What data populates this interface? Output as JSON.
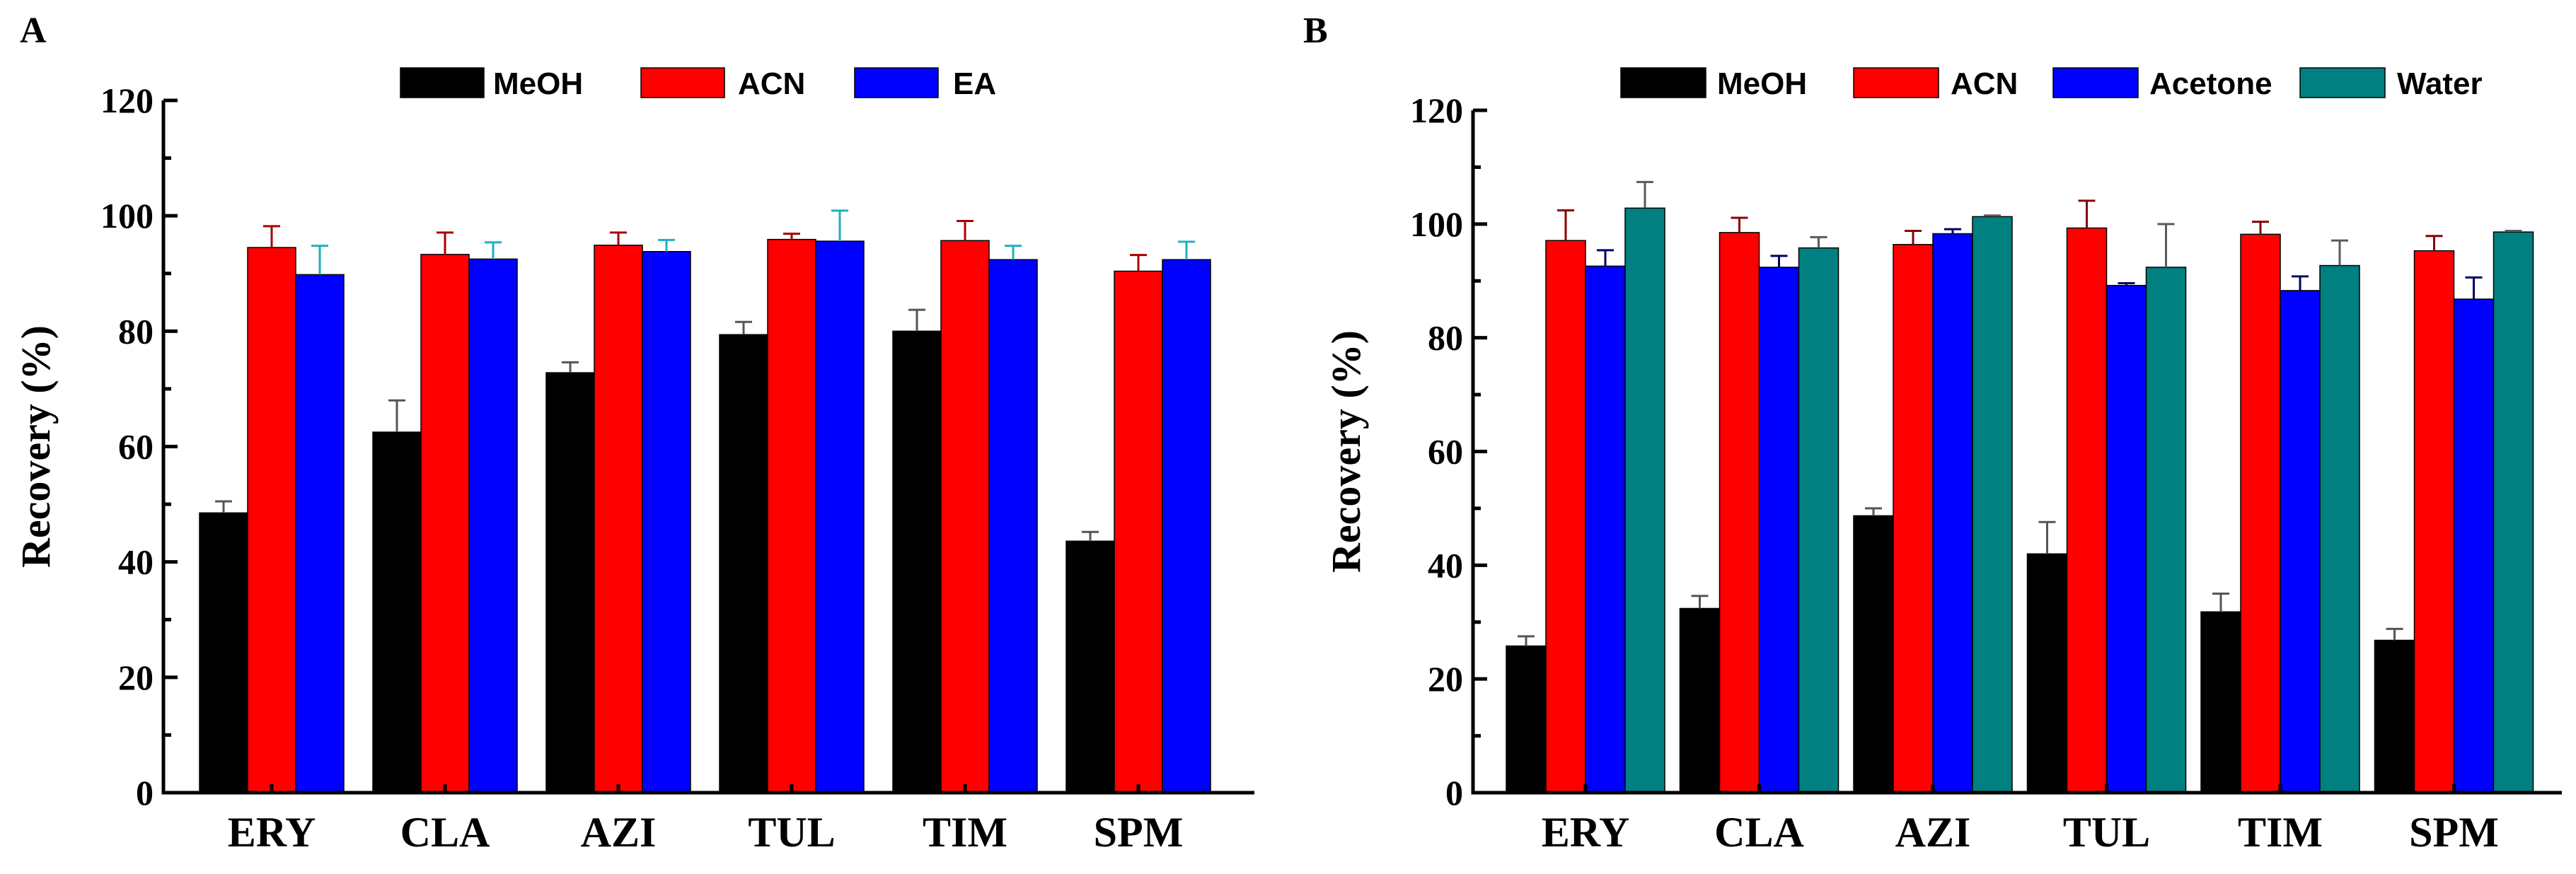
{
  "chart_data": [
    {
      "panel_label": "A",
      "type": "bar",
      "title": "",
      "xlabel": "",
      "ylabel": "Recovery (%)",
      "ylim": [
        0,
        120
      ],
      "yticks": [
        "0",
        "20",
        "40",
        "60",
        "80",
        "100",
        "120"
      ],
      "categories": [
        "ERY",
        "CLA",
        "AZI",
        "TUL",
        "TIM",
        "SPM"
      ],
      "legend_position": "top-center",
      "series": [
        {
          "name": "MeOH",
          "color": "#000000",
          "error_color": "#555555",
          "values": [
            48.5,
            62.5,
            72.8,
            79.4,
            80.0,
            43.6
          ],
          "errors": [
            2.0,
            5.5,
            1.8,
            2.2,
            3.7,
            1.6
          ]
        },
        {
          "name": "ACN",
          "color": "#ff0000",
          "error_color": "#aa0000",
          "values": [
            94.5,
            93.3,
            94.9,
            95.9,
            95.7,
            90.4
          ],
          "errors": [
            3.7,
            3.8,
            2.2,
            1.0,
            3.4,
            2.8
          ]
        },
        {
          "name": "EA",
          "color": "#0000ff",
          "error_color": "#20b0c0",
          "values": [
            89.8,
            92.5,
            93.8,
            95.6,
            92.4,
            92.4
          ],
          "errors": [
            5.0,
            2.9,
            2.0,
            5.3,
            2.4,
            3.1
          ]
        }
      ]
    },
    {
      "panel_label": "B",
      "type": "bar",
      "title": "",
      "xlabel": "",
      "ylabel": "Recovery (%)",
      "ylim": [
        0,
        120
      ],
      "yticks": [
        "0",
        "20",
        "40",
        "60",
        "80",
        "100",
        "120"
      ],
      "categories": [
        "ERY",
        "CLA",
        "AZI",
        "TUL",
        "TIM",
        "SPM"
      ],
      "legend_position": "top-center",
      "series": [
        {
          "name": "MeOH",
          "color": "#000000",
          "error_color": "#555555",
          "values": [
            25.8,
            32.4,
            48.7,
            42.0,
            31.8,
            26.8
          ],
          "errors": [
            1.7,
            2.2,
            1.3,
            5.6,
            3.2,
            2.0
          ]
        },
        {
          "name": "ACN",
          "color": "#ff0000",
          "error_color": "#8a0000",
          "values": [
            97.1,
            98.5,
            96.4,
            99.3,
            98.2,
            95.3
          ],
          "errors": [
            5.3,
            2.6,
            2.4,
            4.8,
            2.2,
            2.6
          ]
        },
        {
          "name": "Acetone",
          "color": "#0000ff",
          "error_color": "#000066",
          "values": [
            92.6,
            92.4,
            98.3,
            89.2,
            88.3,
            86.8
          ],
          "errors": [
            2.8,
            2.0,
            0.8,
            0.4,
            2.5,
            3.8
          ]
        },
        {
          "name": "Water",
          "color": "#008080",
          "error_color": "#5a5a5a",
          "values": [
            102.8,
            95.8,
            101.3,
            92.4,
            92.7,
            98.6
          ],
          "errors": [
            4.6,
            1.9,
            0.2,
            7.6,
            4.4,
            0.2
          ]
        }
      ]
    }
  ]
}
